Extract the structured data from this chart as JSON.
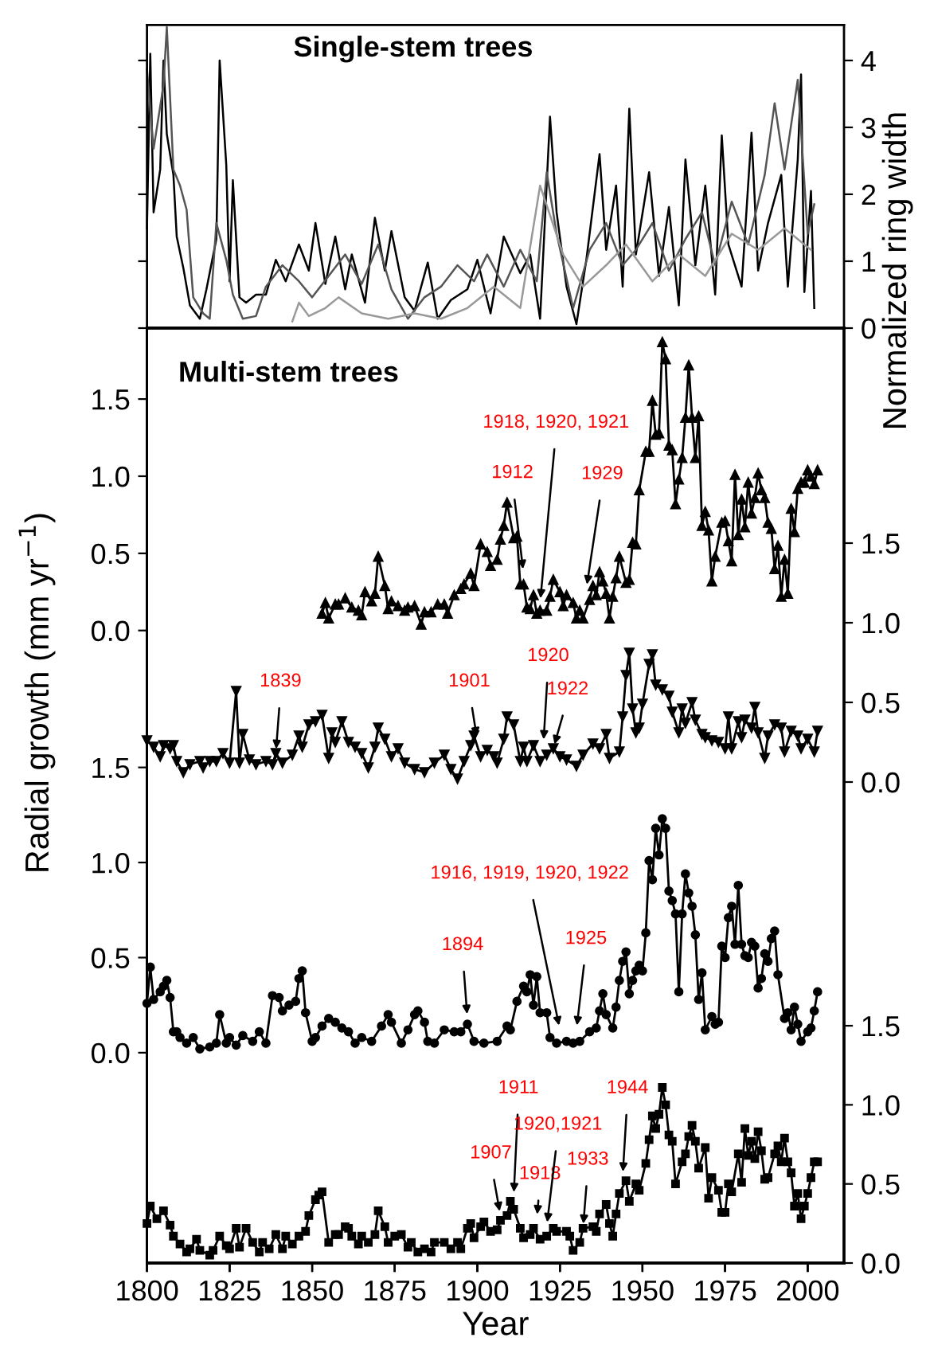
{
  "chart_data": [
    {
      "type": "line",
      "title": "Single-stem trees",
      "y2label": "Normalized ring width",
      "xlim": [
        1800,
        2011
      ],
      "xticks": [
        1800,
        1825,
        1850,
        1875,
        1900,
        1925,
        1950,
        1975,
        2000
      ],
      "y2lim": [
        0,
        4.53
      ],
      "y2ticks": [
        0,
        1,
        2,
        3,
        4
      ],
      "tick_labels": "y",
      "marker": "none",
      "line_style": "solid",
      "series": [
        {
          "color": "#000000",
          "axis": "y2",
          "x": [
            1800,
            1801,
            1802,
            1804,
            1805,
            1806,
            1808,
            1809,
            1811,
            1813,
            1816,
            1818,
            1821,
            1822,
            1824,
            1825,
            1826,
            1828,
            1830,
            1833,
            1836,
            1839,
            1842,
            1846,
            1849,
            1851,
            1854,
            1857,
            1860,
            1862,
            1866,
            1869,
            1872,
            1874,
            1878,
            1881,
            1885,
            1888,
            1892,
            1897,
            1900,
            1904,
            1908,
            1913,
            1916,
            1919,
            1922,
            1924,
            1927,
            1930,
            1933,
            1937,
            1939,
            1942,
            1944,
            1946,
            1948,
            1952,
            1955,
            1958,
            1961,
            1963,
            1966,
            1969,
            1972,
            1974,
            1976,
            1980,
            1983,
            1985,
            1988,
            1992,
            1994,
            1997,
            1998,
            1999,
            2001,
            2002
          ],
          "values": [
            1.49,
            4.1,
            1.73,
            2.37,
            4.0,
            2.9,
            2.29,
            1.37,
            0.9,
            0.34,
            0.14,
            0.58,
            1.33,
            4.0,
            2.44,
            0.7,
            2.21,
            0.46,
            0.38,
            0.5,
            0.5,
            1.02,
            0.7,
            1.25,
            0.86,
            1.57,
            0.66,
            1.37,
            0.58,
            1.1,
            0.38,
            1.65,
            0.86,
            1.45,
            0.46,
            0.26,
            0.98,
            0.14,
            0.42,
            0.58,
            1.02,
            0.22,
            1.37,
            0.82,
            1.1,
            0.14,
            3.16,
            1.73,
            0.62,
            0.06,
            1.02,
            2.6,
            1.17,
            2.13,
            0.62,
            3.28,
            1.1,
            2.33,
            0.78,
            1.81,
            0.34,
            2.52,
            0.94,
            2.13,
            0.5,
            2.88,
            1.25,
            0.62,
            2.92,
            0.86,
            1.57,
            2.29,
            0.62,
            2.52,
            3.79,
            0.54,
            2.05,
            0.3
          ]
        },
        {
          "color": "#555555",
          "axis": "y2",
          "x": [
            1800,
            1802,
            1805,
            1806,
            1808,
            1810,
            1812,
            1814,
            1817,
            1819,
            1821,
            1824,
            1826,
            1829,
            1833,
            1836,
            1841,
            1846,
            1850,
            1855,
            1860,
            1865,
            1870,
            1874,
            1879,
            1884,
            1889,
            1894,
            1899,
            1903,
            1908,
            1913,
            1918,
            1921,
            1924,
            1929,
            1934,
            1939,
            1944,
            1948,
            1953,
            1958,
            1963,
            1968,
            1972,
            1977,
            1982,
            1987,
            1990,
            1993,
            1997,
            2000,
            2002
          ],
          "values": [
            3.87,
            2.68,
            3.63,
            4.5,
            2.37,
            2.13,
            1.77,
            0.46,
            0.22,
            0.14,
            1.57,
            1.02,
            0.5,
            0.14,
            0.18,
            0.62,
            0.94,
            0.7,
            0.46,
            0.78,
            1.1,
            0.66,
            1.25,
            0.58,
            0.14,
            0.46,
            0.62,
            0.94,
            0.7,
            1.1,
            0.62,
            1.17,
            0.7,
            2.33,
            1.41,
            0.3,
            1.17,
            1.57,
            0.94,
            1.17,
            1.57,
            0.86,
            1.33,
            1.73,
            0.94,
            1.89,
            1.25,
            2.29,
            3.36,
            2.37,
            3.71,
            1.41,
            1.85
          ]
        },
        {
          "color": "#999999",
          "axis": "y2",
          "x": [
            1844,
            1846,
            1849,
            1854,
            1858,
            1865,
            1873,
            1881,
            1889,
            1897,
            1905,
            1913,
            1919,
            1926,
            1932,
            1939,
            1945,
            1953,
            1961,
            1969,
            1977,
            1985,
            1993,
            2001
          ],
          "values": [
            0.1,
            0.38,
            0.18,
            0.3,
            0.46,
            0.22,
            0.14,
            0.22,
            0.14,
            0.3,
            0.62,
            0.3,
            2.13,
            1.1,
            0.62,
            0.94,
            1.25,
            0.7,
            1.1,
            0.78,
            1.41,
            1.17,
            1.49,
            1.17
          ]
        }
      ]
    },
    {
      "type": "line",
      "title": "Multi-stem trees",
      "ylabel": "Radial growth (mm yr$^{−1}$)",
      "xlim": [
        1800,
        2011
      ],
      "xticks": [
        1800,
        1825,
        1850,
        1875,
        1900,
        1925,
        1950,
        1975,
        2000
      ],
      "ylim": [
        -4.1,
        1.96
      ],
      "yticks": [
        {
          "value": 0,
          "label": "0.0"
        },
        {
          "value": 0.5,
          "label": "0.5"
        },
        {
          "value": 1,
          "label": "1.0"
        },
        {
          "value": 1.5,
          "label": "1.5"
        }
      ],
      "tick_labels": "y",
      "marker": "triangle",
      "line_style": "solid",
      "annotations": [
        {
          "text": "1912",
          "x": 1914,
          "y": 0.37
        },
        {
          "text": "1918, 1920, 1921",
          "x": 1919,
          "y": 0.18
        },
        {
          "text": "1929",
          "x": 1933,
          "y": 0.27
        }
      ],
      "series": [
        {
          "color": "#000000",
          "x": [
            1853,
            1854,
            1855,
            1857,
            1858,
            1860,
            1862,
            1864,
            1865,
            1866,
            1868,
            1869,
            1870,
            1872,
            1873,
            1874,
            1876,
            1878,
            1879,
            1881,
            1883,
            1884,
            1886,
            1888,
            1890,
            1891,
            1893,
            1895,
            1896,
            1898,
            1899,
            1901,
            1903,
            1904,
            1906,
            1907,
            1908,
            1909,
            1911,
            1912,
            1913,
            1914,
            1915,
            1916,
            1917,
            1918,
            1919,
            1921,
            1922,
            1923,
            1925,
            1926,
            1927,
            1929,
            1930,
            1931,
            1932,
            1934,
            1935,
            1936,
            1937,
            1938,
            1939,
            1940,
            1941,
            1942,
            1943,
            1945,
            1946,
            1947,
            1948,
            1949,
            1951,
            1952,
            1953,
            1954,
            1955,
            1956,
            1957,
            1958,
            1959,
            1960,
            1961,
            1962,
            1963,
            1964,
            1965,
            1966,
            1967,
            1968,
            1969,
            1970,
            1971,
            1972,
            1974,
            1975,
            1976,
            1977,
            1978,
            1979,
            1980,
            1981,
            1982,
            1983,
            1984,
            1985,
            1986,
            1987,
            1988,
            1989,
            1990,
            1991,
            1992,
            1993,
            1994,
            1995,
            1996,
            1997,
            1998,
            1999,
            2000,
            2001,
            2002,
            2003
          ],
          "values": [
            0.11,
            0.18,
            0.08,
            0.17,
            0.17,
            0.21,
            0.15,
            0.13,
            0.1,
            0.25,
            0.19,
            0.24,
            0.48,
            0.29,
            0.14,
            0.19,
            0.16,
            0.13,
            0.15,
            0.16,
            0.04,
            0.12,
            0.12,
            0.17,
            0.17,
            0.11,
            0.23,
            0.27,
            0.3,
            0.37,
            0.29,
            0.56,
            0.51,
            0.42,
            0.46,
            0.59,
            0.68,
            0.83,
            0.6,
            0.61,
            0.3,
            0.3,
            0.15,
            0.14,
            0.23,
            0.11,
            0.13,
            0.13,
            0.22,
            0.33,
            0.25,
            0.16,
            0.23,
            0.18,
            0.08,
            0.13,
            0.08,
            0.2,
            0.29,
            0.23,
            0.38,
            0.32,
            0.24,
            0.08,
            0.22,
            0.34,
            0.48,
            0.31,
            0.33,
            0.57,
            0.56,
            0.91,
            1.16,
            1.16,
            1.49,
            1.27,
            1.28,
            1.87,
            1.76,
            1.2,
            1.17,
            0.82,
            0.98,
            1.12,
            1.38,
            1.72,
            1.38,
            1.12,
            1.39,
            0.68,
            0.77,
            0.65,
            0.32,
            0.48,
            0.7,
            0.71,
            0.58,
            0.45,
            1.01,
            0.62,
            0.85,
            0.67,
            0.96,
            0.76,
            0.86,
            1.02,
            0.91,
            0.86,
            0.7,
            0.66,
            0.4,
            0.55,
            0.22,
            0.46,
            0.24,
            0.79,
            0.64,
            0.92,
            0.96,
            0.96,
            1.04,
            1.0,
            0.95,
            1.04
          ]
        }
      ]
    },
    {
      "type": "line",
      "xlim": [
        1800,
        2011
      ],
      "xticks": [
        1800,
        1825,
        1850,
        1875,
        1900,
        1925,
        1950,
        1975,
        2000
      ],
      "ylim": [
        -3.02,
        2.85
      ],
      "yticks": [
        {
          "value": 0,
          "label": "0.0"
        },
        {
          "value": 0.5,
          "label": "0.5"
        },
        {
          "value": 1,
          "label": "1.0"
        },
        {
          "value": 1.5,
          "label": "1.5"
        }
      ],
      "tick_labels": "y",
      "marker": "triangle_down",
      "line_style": "solid",
      "annotations": [
        {
          "text": "1839",
          "x": 1839,
          "y": 0.18
        },
        {
          "text": "1901",
          "x": 1900,
          "y": 0.26
        },
        {
          "text": "1920",
          "x": 1920,
          "y": 0.24
        },
        {
          "text": "1922",
          "x": 1923,
          "y": 0.21
        }
      ],
      "series": [
        {
          "color": "#000000",
          "x": [
            1800,
            1802,
            1804,
            1805,
            1807,
            1808,
            1809,
            1811,
            1813,
            1816,
            1817,
            1819,
            1821,
            1823,
            1825,
            1827,
            1828,
            1829,
            1831,
            1833,
            1836,
            1838,
            1839,
            1841,
            1844,
            1846,
            1847,
            1849,
            1851,
            1853,
            1855,
            1856,
            1857,
            1859,
            1861,
            1863,
            1865,
            1867,
            1869,
            1870,
            1872,
            1874,
            1876,
            1878,
            1881,
            1884,
            1887,
            1890,
            1892,
            1894,
            1896,
            1898,
            1899,
            1901,
            1903,
            1905,
            1906,
            1908,
            1909,
            1911,
            1913,
            1914,
            1915,
            1917,
            1919,
            1921,
            1923,
            1925,
            1927,
            1930,
            1932,
            1935,
            1937,
            1939,
            1940,
            1943,
            1944,
            1945,
            1946,
            1947,
            1948,
            1949,
            1950,
            1952,
            1953,
            1954,
            1956,
            1958,
            1959,
            1961,
            1962,
            1963,
            1965,
            1966,
            1968,
            1969,
            1971,
            1973,
            1975,
            1976,
            1977,
            1979,
            1980,
            1981,
            1983,
            1984,
            1985,
            1987,
            1988,
            1990,
            1992,
            1993,
            1995,
            1997,
            1998,
            2000,
            2002,
            2003
          ],
          "values": [
            0.26,
            0.22,
            0.16,
            0.23,
            0.21,
            0.23,
            0.13,
            0.06,
            0.11,
            0.13,
            0.09,
            0.13,
            0.13,
            0.18,
            0.12,
            0.57,
            0.12,
            0.3,
            0.14,
            0.11,
            0.13,
            0.11,
            0.18,
            0.12,
            0.17,
            0.29,
            0.22,
            0.36,
            0.38,
            0.42,
            0.15,
            0.31,
            0.25,
            0.38,
            0.25,
            0.22,
            0.18,
            0.09,
            0.22,
            0.34,
            0.27,
            0.16,
            0.21,
            0.12,
            0.08,
            0.06,
            0.12,
            0.17,
            0.08,
            0.02,
            0.13,
            0.23,
            0.29,
            0.16,
            0.2,
            0.16,
            0.12,
            0.27,
            0.41,
            0.36,
            0.13,
            0.22,
            0.13,
            0.23,
            0.13,
            0.17,
            0.21,
            0.16,
            0.14,
            0.1,
            0.17,
            0.24,
            0.21,
            0.3,
            0.15,
            0.19,
            0.41,
            0.67,
            0.81,
            0.46,
            0.31,
            0.34,
            0.49,
            0.74,
            0.8,
            0.61,
            0.58,
            0.54,
            0.44,
            0.31,
            0.46,
            0.37,
            0.5,
            0.39,
            0.3,
            0.28,
            0.26,
            0.25,
            0.21,
            0.41,
            0.21,
            0.38,
            0.28,
            0.39,
            0.34,
            0.47,
            0.31,
            0.15,
            0.29,
            0.36,
            0.34,
            0.19,
            0.32,
            0.29,
            0.21,
            0.27,
            0.19,
            0.32
          ]
        }
      ]
    },
    {
      "type": "line",
      "xlim": [
        1800,
        2011
      ],
      "xticks": [
        1800,
        1825,
        1850,
        1875,
        1900,
        1925,
        1950,
        1975,
        2000
      ],
      "ylim": [
        -1.106,
        3.81
      ],
      "yticks": [
        {
          "value": 0,
          "label": "0.0"
        },
        {
          "value": 0.5,
          "label": "0.5"
        },
        {
          "value": 1,
          "label": "1.0"
        },
        {
          "value": 1.5,
          "label": "1.5"
        }
      ],
      "tick_labels": "y",
      "marker": "circle",
      "line_style": "solid",
      "annotations": [
        {
          "text": "1894",
          "x": 1897,
          "y": 0.18
        },
        {
          "text": "1916, 1919, 1920, 1922",
          "x": 1925,
          "y": 0.12
        },
        {
          "text": "1925",
          "x": 1930,
          "y": 0.12
        }
      ],
      "series": [
        {
          "color": "#000000",
          "x": [
            1800,
            1801,
            1802,
            1804,
            1805,
            1806,
            1807,
            1808,
            1809,
            1810,
            1812,
            1814,
            1816,
            1819,
            1821,
            1822,
            1824,
            1825,
            1827,
            1829,
            1832,
            1834,
            1836,
            1838,
            1840,
            1841,
            1843,
            1845,
            1846,
            1847,
            1848,
            1850,
            1851,
            1853,
            1855,
            1857,
            1859,
            1861,
            1863,
            1865,
            1868,
            1871,
            1873,
            1874,
            1877,
            1879,
            1881,
            1882,
            1884,
            1885,
            1887,
            1890,
            1893,
            1895,
            1897,
            1899,
            1902,
            1906,
            1909,
            1910,
            1912,
            1914,
            1915,
            1916,
            1917,
            1918,
            1919,
            1921,
            1922,
            1924,
            1927,
            1929,
            1931,
            1934,
            1936,
            1937,
            1938,
            1939,
            1941,
            1942,
            1943,
            1944,
            1945,
            1946,
            1947,
            1948,
            1949,
            1950,
            1951,
            1952,
            1953,
            1954,
            1955,
            1956,
            1957,
            1958,
            1959,
            1960,
            1961,
            1962,
            1963,
            1964,
            1965,
            1966,
            1967,
            1968,
            1969,
            1971,
            1972,
            1973,
            1974,
            1975,
            1976,
            1977,
            1978,
            1979,
            1980,
            1981,
            1982,
            1983,
            1984,
            1985,
            1986,
            1987,
            1988,
            1989,
            1990,
            1991,
            1993,
            1994,
            1995,
            1996,
            1997,
            1998,
            2000,
            2001,
            2002,
            2003
          ],
          "values": [
            0.26,
            0.45,
            0.28,
            0.32,
            0.35,
            0.38,
            0.29,
            0.11,
            0.11,
            0.08,
            0.05,
            0.08,
            0.02,
            0.03,
            0.05,
            0.2,
            0.05,
            0.08,
            0.04,
            0.09,
            0.06,
            0.11,
            0.05,
            0.3,
            0.29,
            0.22,
            0.25,
            0.27,
            0.39,
            0.43,
            0.21,
            0.06,
            0.08,
            0.14,
            0.18,
            0.16,
            0.13,
            0.11,
            0.05,
            0.08,
            0.06,
            0.14,
            0.2,
            0.16,
            0.05,
            0.12,
            0.2,
            0.22,
            0.16,
            0.06,
            0.05,
            0.12,
            0.11,
            0.11,
            0.15,
            0.06,
            0.05,
            0.06,
            0.14,
            0.12,
            0.27,
            0.35,
            0.32,
            0.41,
            0.25,
            0.4,
            0.21,
            0.21,
            0.08,
            0.05,
            0.06,
            0.05,
            0.06,
            0.11,
            0.13,
            0.22,
            0.31,
            0.2,
            0.13,
            0.24,
            0.38,
            0.48,
            0.53,
            0.31,
            0.38,
            0.43,
            0.46,
            0.43,
            0.63,
            1.01,
            0.91,
            1.18,
            1.04,
            1.23,
            1.18,
            0.85,
            0.8,
            0.73,
            0.32,
            0.73,
            0.94,
            0.84,
            0.77,
            0.62,
            0.28,
            0.42,
            0.12,
            0.19,
            0.15,
            0.16,
            0.56,
            0.5,
            0.71,
            0.77,
            0.57,
            0.88,
            0.57,
            0.51,
            0.5,
            0.58,
            0.56,
            0.34,
            0.39,
            0.52,
            0.48,
            0.6,
            0.64,
            0.41,
            0.18,
            0.21,
            0.12,
            0.24,
            0.15,
            0.06,
            0.11,
            0.13,
            0.22,
            0.32
          ]
        }
      ]
    },
    {
      "type": "line",
      "xlabel": "Year",
      "xlim": [
        1800,
        2011
      ],
      "xticks": [
        1800,
        1825,
        1850,
        1875,
        1900,
        1925,
        1950,
        1975,
        2000
      ],
      "ylim": [
        0,
        5.91
      ],
      "yticks": [
        {
          "value": 0,
          "label": "0.0"
        },
        {
          "value": 0.5,
          "label": "0.5"
        },
        {
          "value": 1,
          "label": "1.0"
        },
        {
          "value": 1.5,
          "label": "1.5"
        }
      ],
      "marker": "square",
      "line_style": "solid",
      "annotations": [
        {
          "text": "1907",
          "x": 1907,
          "y": 0.3
        },
        {
          "text": "1911",
          "x": 1911,
          "y": 0.42
        },
        {
          "text": "1918",
          "x": 1918,
          "y": 0.28
        },
        {
          "text": "1920,1921",
          "x": 1921,
          "y": 0.23
        },
        {
          "text": "1933",
          "x": 1932,
          "y": 0.22
        },
        {
          "text": "1944",
          "x": 1944,
          "y": 0.55
        }
      ],
      "series": [
        {
          "color": "#000000",
          "x": [
            1800,
            1801,
            1803,
            1805,
            1807,
            1808,
            1810,
            1812,
            1813,
            1815,
            1816,
            1819,
            1820,
            1822,
            1824,
            1825,
            1827,
            1828,
            1830,
            1832,
            1834,
            1835,
            1837,
            1839,
            1841,
            1842,
            1844,
            1846,
            1848,
            1849,
            1851,
            1852,
            1853,
            1855,
            1857,
            1858,
            1860,
            1861,
            1862,
            1864,
            1865,
            1867,
            1869,
            1870,
            1872,
            1873,
            1875,
            1877,
            1879,
            1880,
            1882,
            1884,
            1886,
            1887,
            1890,
            1892,
            1894,
            1895,
            1897,
            1898,
            1899,
            1901,
            1902,
            1904,
            1906,
            1907,
            1909,
            1910,
            1911,
            1913,
            1914,
            1916,
            1917,
            1919,
            1921,
            1923,
            1924,
            1927,
            1928,
            1929,
            1931,
            1932,
            1935,
            1936,
            1937,
            1939,
            1940,
            1941,
            1942,
            1943,
            1945,
            1946,
            1948,
            1949,
            1951,
            1952,
            1953,
            1954,
            1955,
            1956,
            1957,
            1958,
            1959,
            1960,
            1962,
            1963,
            1964,
            1965,
            1966,
            1967,
            1969,
            1970,
            1971,
            1973,
            1974,
            1975,
            1976,
            1977,
            1979,
            1980,
            1981,
            1982,
            1983,
            1984,
            1985,
            1986,
            1987,
            1988,
            1990,
            1991,
            1992,
            1993,
            1994,
            1995,
            1996,
            1997,
            1998,
            1999,
            2000,
            2001,
            2002,
            2003
          ],
          "values": [
            0.25,
            0.36,
            0.28,
            0.33,
            0.24,
            0.17,
            0.12,
            0.07,
            0.09,
            0.15,
            0.08,
            0.05,
            0.08,
            0.17,
            0.11,
            0.09,
            0.22,
            0.1,
            0.22,
            0.13,
            0.07,
            0.13,
            0.09,
            0.18,
            0.09,
            0.17,
            0.12,
            0.17,
            0.2,
            0.3,
            0.4,
            0.43,
            0.45,
            0.13,
            0.18,
            0.18,
            0.23,
            0.22,
            0.17,
            0.12,
            0.17,
            0.13,
            0.18,
            0.33,
            0.23,
            0.13,
            0.17,
            0.18,
            0.1,
            0.13,
            0.07,
            0.09,
            0.07,
            0.13,
            0.13,
            0.09,
            0.13,
            0.09,
            0.22,
            0.25,
            0.16,
            0.23,
            0.26,
            0.2,
            0.21,
            0.27,
            0.3,
            0.39,
            0.34,
            0.22,
            0.16,
            0.18,
            0.22,
            0.15,
            0.17,
            0.22,
            0.2,
            0.2,
            0.17,
            0.08,
            0.13,
            0.22,
            0.23,
            0.2,
            0.31,
            0.37,
            0.25,
            0.17,
            0.31,
            0.44,
            0.52,
            0.39,
            0.5,
            0.46,
            0.63,
            0.78,
            0.93,
            0.85,
            0.94,
            1.11,
            1.0,
            0.81,
            0.77,
            0.5,
            0.64,
            0.69,
            0.8,
            0.87,
            0.77,
            0.6,
            0.73,
            0.41,
            0.54,
            0.46,
            0.32,
            0.32,
            0.5,
            0.45,
            0.69,
            0.51,
            0.85,
            0.68,
            0.77,
            0.66,
            0.83,
            0.71,
            0.53,
            0.54,
            0.69,
            0.74,
            0.64,
            0.79,
            0.64,
            0.57,
            0.36,
            0.44,
            0.28,
            0.36,
            0.44,
            0.54,
            0.64,
            0.64
          ]
        }
      ]
    }
  ]
}
